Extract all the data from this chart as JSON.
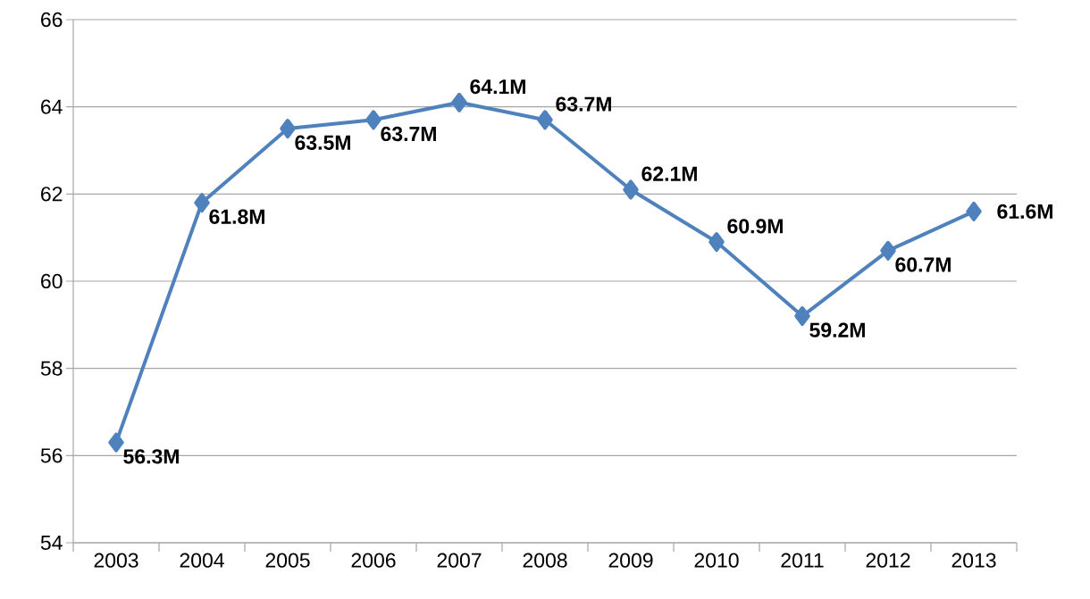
{
  "chart_data": {
    "type": "line",
    "categories": [
      "2003",
      "2004",
      "2005",
      "2006",
      "2007",
      "2008",
      "2009",
      "2010",
      "2011",
      "2012",
      "2013"
    ],
    "series": [
      {
        "color": "#4f81bd",
        "values": [
          56.3,
          61.8,
          63.5,
          63.7,
          64.1,
          63.7,
          62.1,
          60.9,
          59.2,
          60.7,
          61.6
        ],
        "value_labels": [
          "56.3M",
          "61.8M",
          "63.5M",
          "63.7M",
          "64.1M",
          "63.7M",
          "62.1M",
          "60.9M",
          "59.2M",
          "60.7M",
          "61.6M"
        ]
      }
    ],
    "ylim": [
      54,
      66
    ],
    "yticks": [
      54,
      56,
      58,
      60,
      62,
      64,
      66
    ],
    "grid": "y",
    "marker": "diamond",
    "line_style": "solid"
  }
}
